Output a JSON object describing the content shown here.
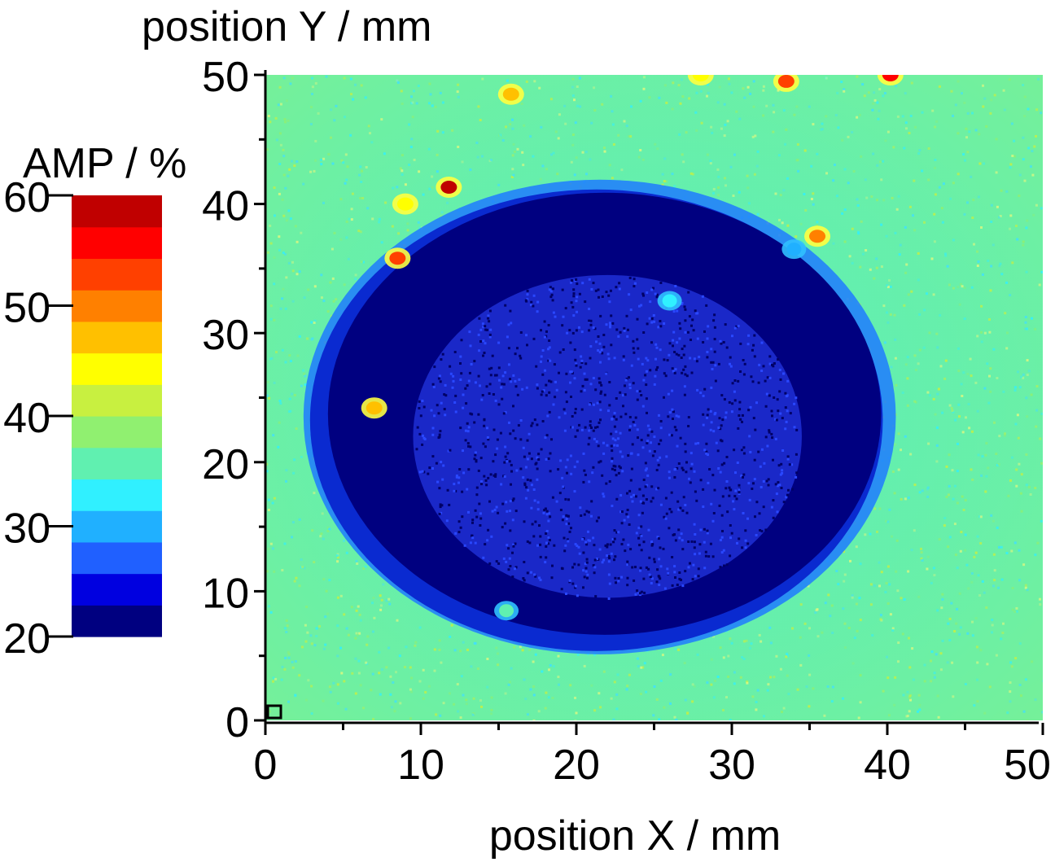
{
  "chart_data": {
    "type": "heatmap",
    "title": "",
    "xlabel": "position X / mm",
    "ylabel": "position Y / mm",
    "xlim": [
      0,
      50
    ],
    "ylim": [
      0,
      50
    ],
    "x_ticks": [
      "0",
      "10",
      "20",
      "30",
      "40",
      "50"
    ],
    "y_ticks": [
      "0",
      "10",
      "20",
      "30",
      "40",
      "50"
    ],
    "grid": false,
    "colorbar": {
      "label": "AMP / %",
      "range": [
        20,
        60
      ],
      "ticks": [
        "20",
        "30",
        "40",
        "50",
        "60"
      ],
      "colormap": [
        "#000080",
        "#0000e0",
        "#2060ff",
        "#20b0ff",
        "#30f0ff",
        "#60f0b0",
        "#90f070",
        "#c8f040",
        "#ffff00",
        "#ffc000",
        "#ff8000",
        "#ff4000",
        "#ff0000",
        "#c00000"
      ]
    },
    "background_amp": 38,
    "background_color": "#60f0b0",
    "features": [
      {
        "name": "defect",
        "center": [
          21.5,
          23.5
        ],
        "radius": [
          18,
          17.5
        ],
        "amp": 22
      },
      {
        "name": "inner region",
        "center": [
          22,
          22
        ],
        "radius": [
          12.5,
          12.5
        ],
        "amp": 25
      },
      {
        "name": "spot",
        "center": [
          11.8,
          41.3
        ],
        "amp": 58
      },
      {
        "name": "spot",
        "center": [
          8.5,
          35.8
        ],
        "amp": 52
      },
      {
        "name": "spot",
        "center": [
          7,
          24.2
        ],
        "amp": 48
      },
      {
        "name": "spot",
        "center": [
          9,
          40
        ],
        "amp": 45
      },
      {
        "name": "spot",
        "center": [
          15.8,
          48.5
        ],
        "amp": 46
      },
      {
        "name": "spot",
        "center": [
          33.5,
          49.5
        ],
        "amp": 53
      },
      {
        "name": "spot",
        "center": [
          40.2,
          50
        ],
        "amp": 55
      },
      {
        "name": "spot",
        "center": [
          28,
          50
        ],
        "amp": 45
      },
      {
        "name": "spot",
        "center": [
          35.5,
          37.5
        ],
        "amp": 50
      },
      {
        "name": "spot",
        "center": [
          34,
          36.5
        ],
        "amp": 31
      },
      {
        "name": "spot",
        "center": [
          26,
          32.5
        ],
        "amp": 34
      },
      {
        "name": "spot",
        "center": [
          15.5,
          8.5
        ],
        "amp": 35
      }
    ]
  }
}
